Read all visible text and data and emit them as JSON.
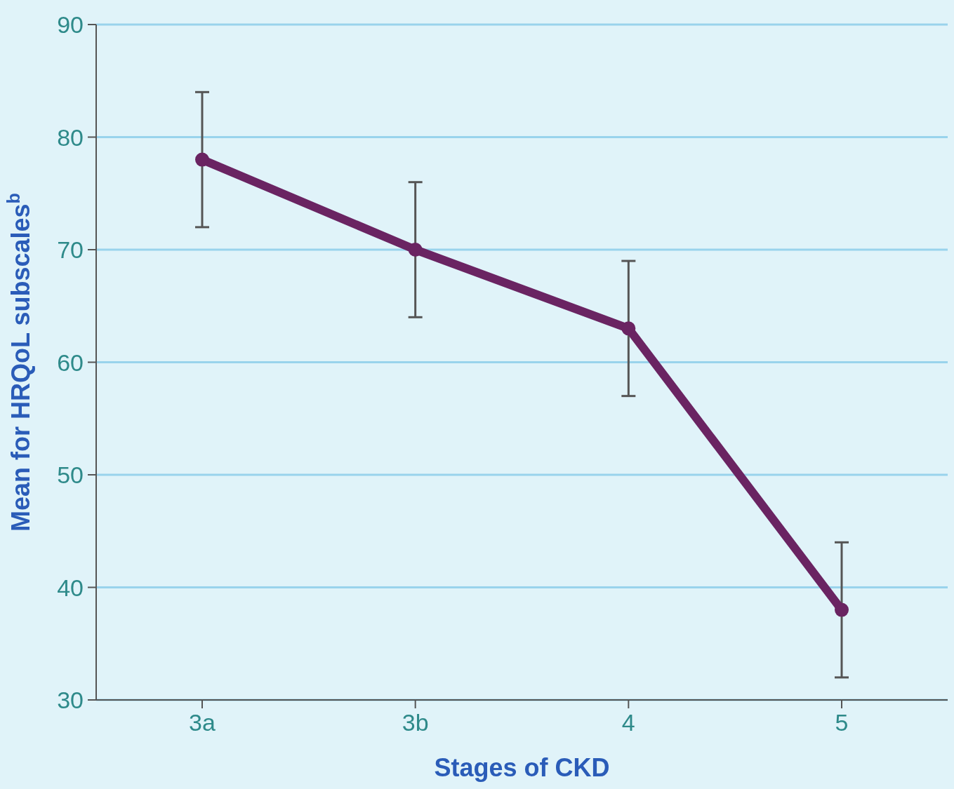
{
  "chart_data": {
    "type": "line",
    "xlabel": "Stages of CKD",
    "ylabel": "Mean for HRQoL subscales$^{b}$",
    "categories": [
      "3a",
      "3b",
      "4",
      "5"
    ],
    "series": [
      {
        "color": "#6a2462",
        "values": [
          78,
          70,
          63,
          38
        ],
        "errors": [
          6,
          6,
          6,
          6
        ]
      }
    ],
    "ylim": [
      30,
      90
    ],
    "yticks": [
      30,
      40,
      50,
      60,
      70,
      80,
      90
    ],
    "grid": "y",
    "marker": "circle",
    "line_style": "solid"
  }
}
